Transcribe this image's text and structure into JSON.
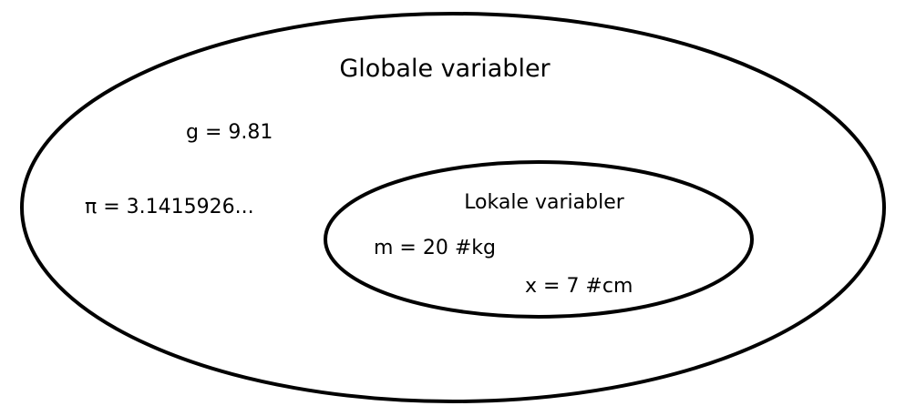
{
  "diagram": {
    "stroke_color": "#000000",
    "background_color": "#ffffff",
    "outer_scope": {
      "title": "Globale variabler",
      "variables": [
        "g = 9.81",
        "π = 3.1415926..."
      ]
    },
    "inner_scope": {
      "title": "Lokale variabler",
      "variables": [
        "m = 20 #kg",
        "x = 7 #cm"
      ]
    }
  }
}
